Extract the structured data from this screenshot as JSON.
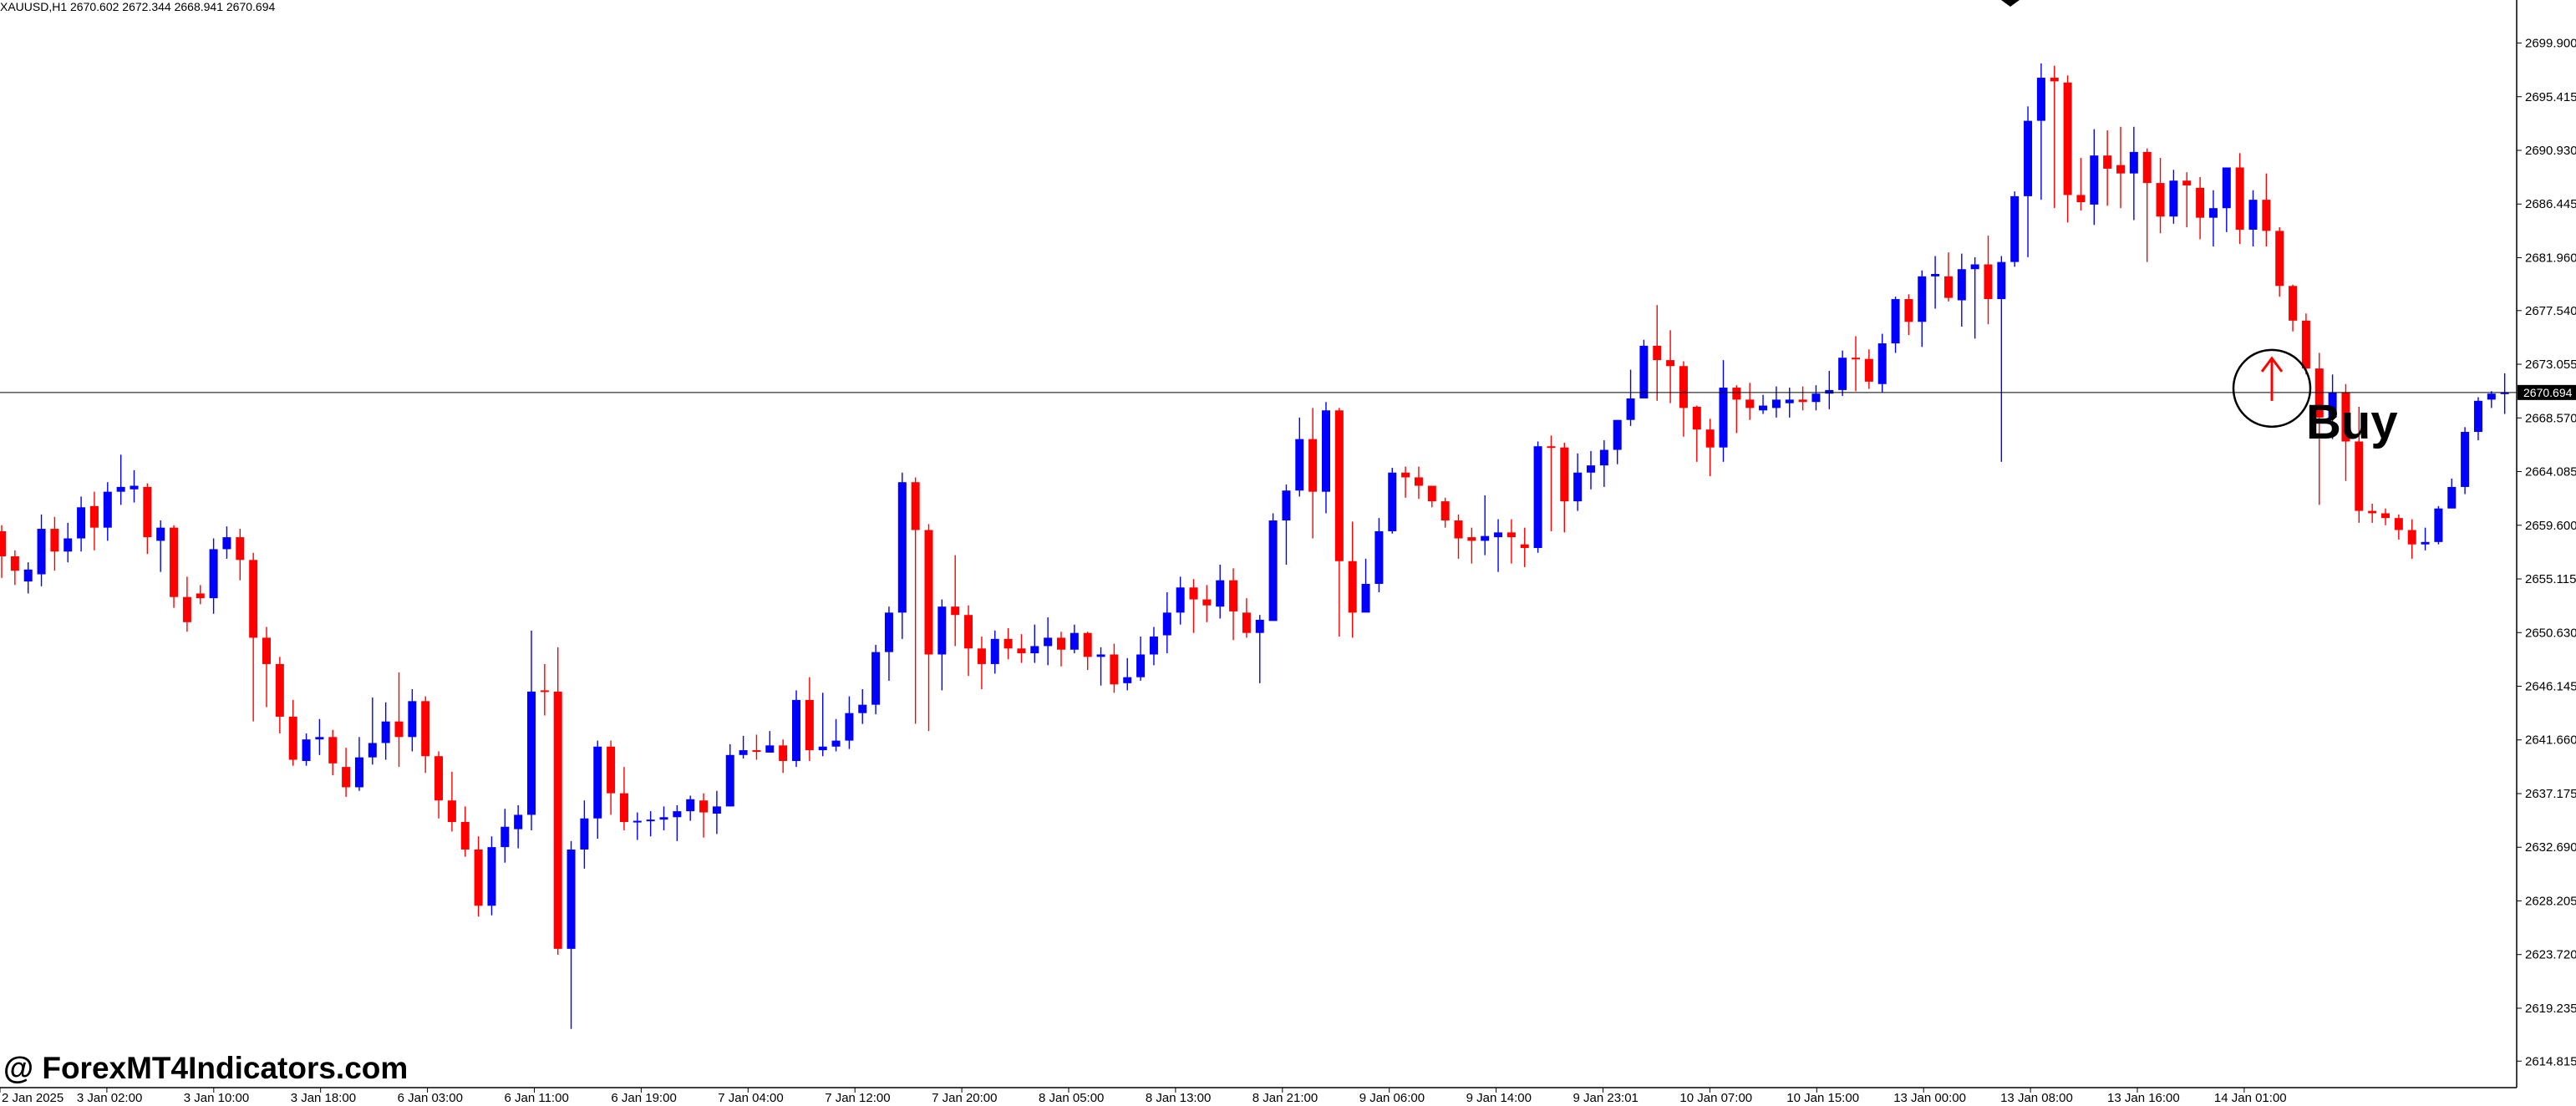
{
  "header": {
    "symbol_info": "XAUUSD,H1  2670.602 2672.344 2668.941 2670.694"
  },
  "watermark": "@ ForexMT4Indicators.com",
  "signal": {
    "label": "Buy",
    "direction": "up",
    "arrow_color": "#ff0000"
  },
  "colors": {
    "bull": "#0000ff",
    "bear": "#ff0000",
    "background": "#ffffff",
    "axis": "#000000"
  },
  "chart_data": {
    "type": "candlestick",
    "symbol": "XAUUSD",
    "timeframe": "H1",
    "current_price": 2670.694,
    "ylim": [
      2612.6,
      2702.1
    ],
    "y_ticks": [
      "2699.900",
      "2695.415",
      "2690.930",
      "2686.445",
      "2681.960",
      "2677.540",
      "2673.055",
      "2668.570",
      "2664.085",
      "2659.600",
      "2655.115",
      "2650.630",
      "2646.145",
      "2641.660",
      "2637.175",
      "2632.690",
      "2628.205",
      "2623.720",
      "2619.235",
      "2614.815"
    ],
    "x_ticks": [
      "2 Jan 2025",
      "3 Jan 02:00",
      "3 Jan 10:00",
      "3 Jan 18:00",
      "6 Jan 03:00",
      "6 Jan 11:00",
      "6 Jan 19:00",
      "7 Jan 04:00",
      "7 Jan 12:00",
      "7 Jan 20:00",
      "8 Jan 05:00",
      "8 Jan 13:00",
      "8 Jan 21:00",
      "9 Jan 06:00",
      "9 Jan 14:00",
      "9 Jan 23:01",
      "10 Jan 07:00",
      "10 Jan 15:00",
      "13 Jan 00:00",
      "13 Jan 08:00",
      "13 Jan 16:00",
      "14 Jan 01:00"
    ],
    "grid": false,
    "candles": [
      [
        2659.1,
        2657.0,
        2659.6,
        2655.2
      ],
      [
        2657.0,
        2655.8,
        2657.5,
        2654.6
      ],
      [
        2654.9,
        2655.9,
        2656.5,
        2653.9
      ],
      [
        2655.5,
        2659.3,
        2660.5,
        2654.5
      ],
      [
        2659.3,
        2657.4,
        2660.3,
        2655.8
      ],
      [
        2657.4,
        2658.5,
        2659.8,
        2656.5
      ],
      [
        2658.5,
        2661.1,
        2662.0,
        2657.4
      ],
      [
        2661.2,
        2659.4,
        2662.4,
        2657.5
      ],
      [
        2659.4,
        2662.4,
        2663.2,
        2658.3
      ],
      [
        2662.4,
        2662.8,
        2665.5,
        2661.3
      ],
      [
        2662.6,
        2662.9,
        2664.2,
        2661.5
      ],
      [
        2662.8,
        2658.6,
        2663.1,
        2657.2
      ],
      [
        2658.3,
        2659.4,
        2660.0,
        2655.7
      ],
      [
        2659.4,
        2653.6,
        2659.6,
        2652.7
      ],
      [
        2653.6,
        2651.5,
        2655.3,
        2650.7
      ],
      [
        2653.9,
        2653.5,
        2654.6,
        2653.0
      ],
      [
        2653.5,
        2657.6,
        2658.5,
        2652.2
      ],
      [
        2657.6,
        2658.6,
        2659.5,
        2656.8
      ],
      [
        2658.6,
        2656.7,
        2659.3,
        2655.0
      ],
      [
        2656.7,
        2650.2,
        2657.3,
        2643.2
      ],
      [
        2650.2,
        2648.0,
        2651.1,
        2644.4
      ],
      [
        2648.0,
        2643.6,
        2648.6,
        2642.2
      ],
      [
        2643.6,
        2640.0,
        2645.0,
        2639.5
      ],
      [
        2639.9,
        2641.7,
        2642.2,
        2639.5
      ],
      [
        2641.7,
        2641.9,
        2643.4,
        2640.4
      ],
      [
        2641.9,
        2639.7,
        2642.5,
        2638.7
      ],
      [
        2639.4,
        2637.7,
        2641.0,
        2636.9
      ],
      [
        2637.7,
        2640.2,
        2641.9,
        2637.4
      ],
      [
        2640.2,
        2641.4,
        2645.2,
        2639.6
      ],
      [
        2641.4,
        2643.2,
        2644.8,
        2640.0
      ],
      [
        2643.2,
        2641.9,
        2647.3,
        2639.4
      ],
      [
        2641.9,
        2644.9,
        2645.9,
        2640.7
      ],
      [
        2644.9,
        2640.3,
        2645.3,
        2638.9
      ],
      [
        2640.3,
        2636.6,
        2640.7,
        2635.1
      ],
      [
        2636.6,
        2634.8,
        2639.0,
        2634.0
      ],
      [
        2634.8,
        2632.5,
        2636.1,
        2631.9
      ],
      [
        2632.5,
        2627.8,
        2633.6,
        2626.9
      ],
      [
        2627.8,
        2632.7,
        2633.6,
        2627.0
      ],
      [
        2632.7,
        2634.4,
        2635.9,
        2631.4
      ],
      [
        2634.2,
        2635.4,
        2636.2,
        2632.6
      ],
      [
        2635.4,
        2645.7,
        2650.8,
        2634.1
      ],
      [
        2645.8,
        2645.7,
        2648.0,
        2643.7
      ],
      [
        2645.7,
        2624.2,
        2649.4,
        2623.7
      ],
      [
        2624.2,
        2632.5,
        2633.2,
        2617.5
      ],
      [
        2632.5,
        2635.1,
        2636.6,
        2630.9
      ],
      [
        2635.1,
        2641.1,
        2641.6,
        2633.4
      ],
      [
        2641.1,
        2637.2,
        2641.6,
        2635.4
      ],
      [
        2637.2,
        2634.8,
        2639.4,
        2634.1
      ],
      [
        2634.8,
        2634.9,
        2635.6,
        2633.3
      ],
      [
        2634.9,
        2635.0,
        2635.7,
        2633.6
      ],
      [
        2635.0,
        2635.2,
        2636.1,
        2634.1
      ],
      [
        2635.2,
        2635.7,
        2636.2,
        2633.2
      ],
      [
        2635.7,
        2636.7,
        2637.0,
        2634.9
      ],
      [
        2636.6,
        2635.6,
        2637.2,
        2633.5
      ],
      [
        2635.5,
        2636.1,
        2637.4,
        2633.8
      ],
      [
        2636.1,
        2640.4,
        2641.3,
        2636.1
      ],
      [
        2640.4,
        2640.8,
        2642.0,
        2640.1
      ],
      [
        2640.8,
        2640.7,
        2642.1,
        2640.0
      ],
      [
        2640.6,
        2641.2,
        2642.4,
        2640.7
      ],
      [
        2641.2,
        2639.9,
        2641.7,
        2638.9
      ],
      [
        2639.9,
        2645.0,
        2645.8,
        2639.4
      ],
      [
        2645.0,
        2640.8,
        2646.9,
        2639.9
      ],
      [
        2640.8,
        2641.1,
        2645.6,
        2640.3
      ],
      [
        2641.1,
        2641.6,
        2643.4,
        2640.7
      ],
      [
        2641.6,
        2643.9,
        2645.3,
        2640.9
      ],
      [
        2643.9,
        2644.6,
        2645.9,
        2643.0
      ],
      [
        2644.6,
        2649.0,
        2649.6,
        2643.8
      ],
      [
        2649.0,
        2652.3,
        2652.8,
        2646.6
      ],
      [
        2652.3,
        2663.2,
        2664.0,
        2650.1
      ],
      [
        2663.2,
        2659.2,
        2663.6,
        2643.0
      ],
      [
        2659.2,
        2648.8,
        2659.7,
        2642.4
      ],
      [
        2648.8,
        2652.8,
        2653.4,
        2645.8
      ],
      [
        2652.8,
        2652.1,
        2657.1,
        2649.5
      ],
      [
        2652.1,
        2649.3,
        2652.9,
        2647.0
      ],
      [
        2649.3,
        2648.0,
        2650.3,
        2645.9
      ],
      [
        2648.0,
        2650.1,
        2650.8,
        2647.2
      ],
      [
        2650.1,
        2649.3,
        2651.0,
        2648.4
      ],
      [
        2649.3,
        2648.9,
        2650.5,
        2648.1
      ],
      [
        2648.9,
        2649.5,
        2651.3,
        2648.1
      ],
      [
        2649.5,
        2650.2,
        2651.9,
        2647.9
      ],
      [
        2650.2,
        2649.2,
        2650.7,
        2647.8
      ],
      [
        2649.2,
        2650.6,
        2651.3,
        2648.9
      ],
      [
        2650.6,
        2648.6,
        2650.7,
        2647.5
      ],
      [
        2648.6,
        2648.8,
        2649.4,
        2646.2
      ],
      [
        2648.8,
        2646.3,
        2649.7,
        2645.6
      ],
      [
        2646.4,
        2646.9,
        2648.5,
        2645.8
      ],
      [
        2646.9,
        2648.8,
        2650.3,
        2646.6
      ],
      [
        2648.8,
        2650.3,
        2651.1,
        2647.9
      ],
      [
        2650.4,
        2652.3,
        2654.0,
        2648.9
      ],
      [
        2652.3,
        2654.4,
        2655.3,
        2651.3
      ],
      [
        2654.4,
        2653.4,
        2655.1,
        2650.6
      ],
      [
        2653.4,
        2652.9,
        2654.6,
        2651.5
      ],
      [
        2652.8,
        2655.0,
        2656.3,
        2651.8
      ],
      [
        2655.0,
        2652.4,
        2656.0,
        2650.0
      ],
      [
        2652.3,
        2650.6,
        2653.5,
        2650.2
      ],
      [
        2650.6,
        2651.7,
        2652.1,
        2646.4
      ],
      [
        2651.6,
        2660.0,
        2660.6,
        2651.7
      ],
      [
        2660.0,
        2662.5,
        2663.0,
        2656.3
      ],
      [
        2662.5,
        2666.8,
        2668.6,
        2662.0
      ],
      [
        2666.8,
        2662.4,
        2669.4,
        2658.5
      ],
      [
        2662.4,
        2669.2,
        2669.9,
        2660.6
      ],
      [
        2669.2,
        2656.6,
        2669.4,
        2650.3
      ],
      [
        2656.6,
        2652.3,
        2659.9,
        2650.2
      ],
      [
        2652.3,
        2654.7,
        2656.8,
        2654.1
      ],
      [
        2654.7,
        2659.1,
        2660.2,
        2654.0
      ],
      [
        2659.1,
        2664.0,
        2664.4,
        2658.9
      ],
      [
        2664.0,
        2663.6,
        2664.5,
        2661.9
      ],
      [
        2663.6,
        2662.9,
        2664.5,
        2661.8
      ],
      [
        2662.9,
        2661.6,
        2662.9,
        2661.1
      ],
      [
        2661.6,
        2660.0,
        2661.9,
        2659.4
      ],
      [
        2660.0,
        2658.5,
        2660.5,
        2656.8
      ],
      [
        2658.6,
        2658.3,
        2659.4,
        2656.4
      ],
      [
        2658.3,
        2658.7,
        2662.1,
        2657.1
      ],
      [
        2658.6,
        2659.0,
        2660.1,
        2655.7
      ],
      [
        2659.0,
        2658.6,
        2660.1,
        2656.4
      ],
      [
        2658.0,
        2657.7,
        2659.4,
        2656.1
      ],
      [
        2657.7,
        2666.2,
        2666.6,
        2657.3
      ],
      [
        2666.2,
        2666.1,
        2667.1,
        2659.1
      ],
      [
        2666.1,
        2661.6,
        2666.5,
        2659.0
      ],
      [
        2661.6,
        2664.0,
        2665.6,
        2660.8
      ],
      [
        2664.0,
        2664.6,
        2665.8,
        2662.6
      ],
      [
        2664.6,
        2665.9,
        2666.7,
        2662.8
      ],
      [
        2665.9,
        2668.4,
        2668.4,
        2664.7
      ],
      [
        2668.4,
        2670.2,
        2672.6,
        2667.9
      ],
      [
        2670.2,
        2674.6,
        2675.1,
        2670.5
      ],
      [
        2674.6,
        2673.4,
        2678.0,
        2670.0
      ],
      [
        2673.4,
        2672.9,
        2675.9,
        2669.8
      ],
      [
        2672.9,
        2669.4,
        2673.3,
        2667.0
      ],
      [
        2669.5,
        2667.6,
        2669.6,
        2664.9
      ],
      [
        2667.6,
        2666.1,
        2668.5,
        2663.7
      ],
      [
        2666.1,
        2671.1,
        2673.4,
        2664.9
      ],
      [
        2671.1,
        2670.1,
        2671.3,
        2667.3
      ],
      [
        2670.1,
        2669.4,
        2671.5,
        2668.4
      ],
      [
        2669.2,
        2669.6,
        2670.5,
        2668.9
      ],
      [
        2669.4,
        2670.1,
        2671.2,
        2668.6
      ],
      [
        2669.8,
        2670.1,
        2671.1,
        2668.6
      ],
      [
        2670.1,
        2669.9,
        2671.2,
        2669.2
      ],
      [
        2669.9,
        2670.6,
        2671.3,
        2669.2
      ],
      [
        2670.6,
        2670.9,
        2672.5,
        2669.3
      ],
      [
        2670.9,
        2673.6,
        2674.2,
        2670.4
      ],
      [
        2673.6,
        2673.5,
        2675.4,
        2670.8
      ],
      [
        2673.5,
        2671.6,
        2674.3,
        2671.0
      ],
      [
        2671.4,
        2674.8,
        2675.6,
        2670.7
      ],
      [
        2674.8,
        2678.5,
        2678.7,
        2674.0
      ],
      [
        2678.5,
        2676.6,
        2678.9,
        2675.5
      ],
      [
        2676.6,
        2680.4,
        2680.9,
        2674.5
      ],
      [
        2680.4,
        2680.6,
        2682.1,
        2677.7
      ],
      [
        2680.4,
        2678.6,
        2682.4,
        2678.3
      ],
      [
        2678.4,
        2681.0,
        2682.3,
        2676.2
      ],
      [
        2681.0,
        2681.4,
        2682.0,
        2675.2
      ],
      [
        2681.4,
        2678.5,
        2683.8,
        2676.4
      ],
      [
        2678.5,
        2681.6,
        2682.1,
        2664.9
      ],
      [
        2681.6,
        2687.1,
        2687.5,
        2681.2
      ],
      [
        2687.1,
        2693.4,
        2694.6,
        2682.0
      ],
      [
        2693.4,
        2697.0,
        2698.2,
        2686.8
      ],
      [
        2697.0,
        2696.7,
        2698.0,
        2686.1
      ],
      [
        2696.6,
        2687.2,
        2697.2,
        2684.9
      ],
      [
        2687.2,
        2686.6,
        2690.3,
        2685.9
      ],
      [
        2686.4,
        2690.5,
        2692.7,
        2684.7
      ],
      [
        2690.5,
        2689.4,
        2692.6,
        2686.3
      ],
      [
        2689.7,
        2689.0,
        2692.9,
        2686.1
      ],
      [
        2689.0,
        2690.8,
        2692.9,
        2685.1
      ],
      [
        2690.8,
        2688.2,
        2691.1,
        2681.6
      ],
      [
        2688.2,
        2685.4,
        2690.3,
        2684.0
      ],
      [
        2685.4,
        2688.4,
        2689.3,
        2684.8
      ],
      [
        2688.4,
        2688.0,
        2689.1,
        2684.5
      ],
      [
        2687.8,
        2685.3,
        2688.7,
        2683.5
      ],
      [
        2685.3,
        2686.1,
        2687.6,
        2682.9
      ],
      [
        2686.1,
        2689.5,
        2689.5,
        2684.1
      ],
      [
        2689.5,
        2684.3,
        2690.7,
        2683.1
      ],
      [
        2684.3,
        2686.8,
        2687.6,
        2682.9
      ],
      [
        2686.8,
        2684.2,
        2689.0,
        2682.9
      ],
      [
        2684.2,
        2679.6,
        2684.5,
        2678.7
      ],
      [
        2679.6,
        2676.7,
        2679.7,
        2675.8
      ],
      [
        2676.7,
        2672.7,
        2677.3,
        2672.2
      ],
      [
        2672.7,
        2668.6,
        2674.0,
        2661.3
      ],
      [
        2668.6,
        2670.7,
        2672.2,
        2666.8
      ],
      [
        2670.7,
        2666.6,
        2671.4,
        2663.3
      ],
      [
        2666.6,
        2660.8,
        2669.5,
        2659.8
      ],
      [
        2660.8,
        2660.6,
        2661.4,
        2659.8
      ],
      [
        2660.6,
        2660.2,
        2661.0,
        2659.6
      ],
      [
        2660.2,
        2659.2,
        2660.5,
        2658.4
      ],
      [
        2659.2,
        2658.0,
        2660.1,
        2656.8
      ],
      [
        2658.0,
        2658.2,
        2659.4,
        2657.5
      ],
      [
        2658.2,
        2661.0,
        2661.2,
        2658.0
      ],
      [
        2661.0,
        2662.8,
        2663.5,
        2661.5
      ],
      [
        2662.8,
        2667.4,
        2667.8,
        2662.2
      ],
      [
        2667.4,
        2670.0,
        2670.3,
        2666.7
      ],
      [
        2670.1,
        2670.6,
        2670.8,
        2669.4
      ],
      [
        2670.6,
        2670.7,
        2672.3,
        2668.9
      ]
    ]
  }
}
